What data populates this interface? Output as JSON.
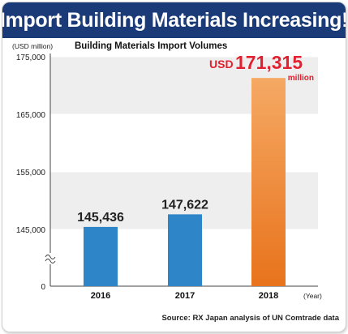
{
  "banner": {
    "title": "Import Building Materials Increasing!"
  },
  "chart_data": {
    "type": "bar",
    "title": "Building Materials Import Volumes",
    "ylabel": "(USD million)",
    "xlabel": "(Year)",
    "categories": [
      "2016",
      "2017",
      "2018"
    ],
    "values": [
      145436,
      147622,
      171315
    ],
    "value_labels": [
      "145,436",
      "147,622",
      "171,315"
    ],
    "y_ticks": [
      0,
      145000,
      155000,
      165000,
      175000
    ],
    "y_tick_labels": [
      "0",
      "145,000",
      "155,000",
      "165,000",
      "175,000"
    ],
    "y_axis_break": true,
    "ylim_broken": [
      140000,
      175000
    ],
    "grid": true,
    "highlight": {
      "index": 2,
      "prefix": "USD",
      "unit": "million"
    },
    "source": "Source: RX Japan analysis of UN Comtrade data",
    "colors": {
      "bar": "#2e86c8",
      "highlight_bar_top": "#f5a964",
      "highlight_bar_bottom": "#e8731c",
      "highlight_text": "#e3202f",
      "banner": "#1a3a78",
      "band": "#eeeeee"
    }
  }
}
